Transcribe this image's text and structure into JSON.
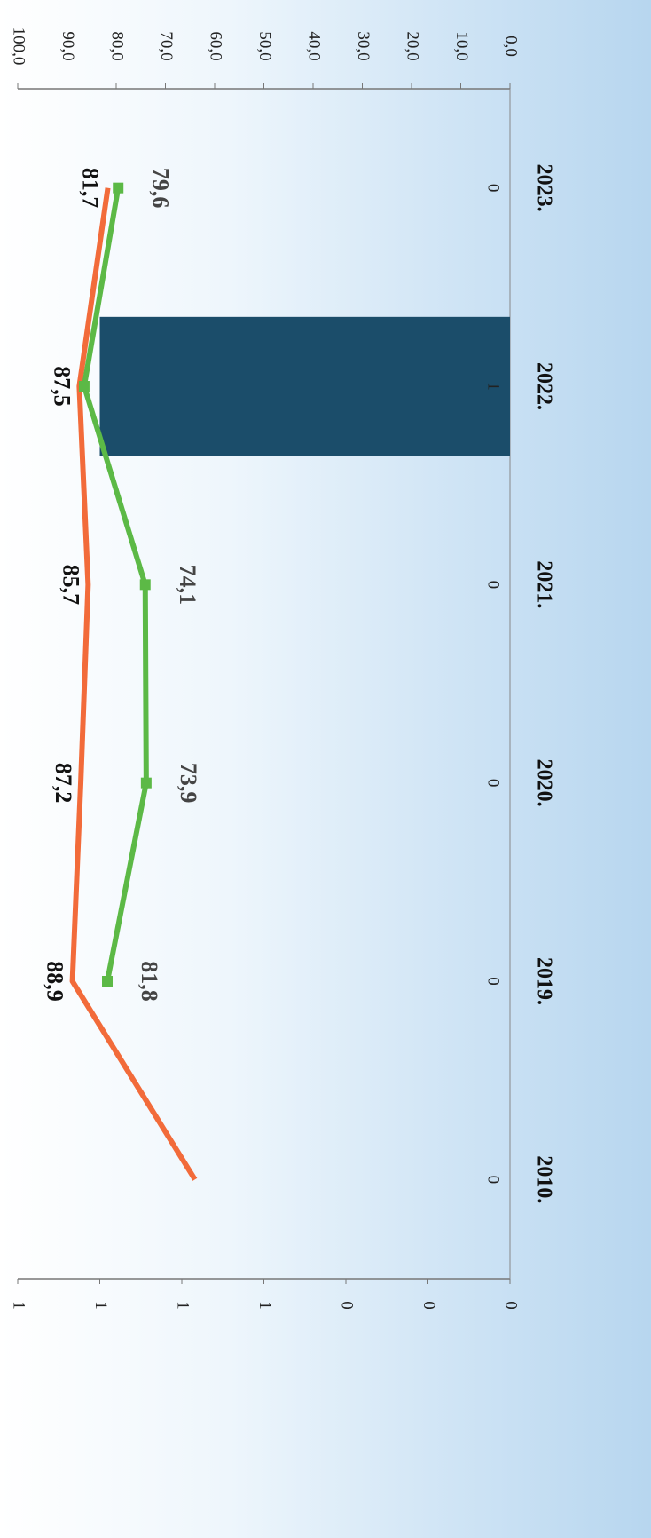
{
  "chart_data": {
    "type": "bar_line",
    "categories": [
      "2010.",
      "2019.",
      "2020.",
      "2021.",
      "2022.",
      "2023."
    ],
    "series": [
      {
        "type": "bar",
        "axis": "y2",
        "color": "#1b4d6a",
        "values": [
          0,
          0,
          0,
          0,
          1,
          0
        ],
        "value_labels": [
          "0",
          "0",
          "0",
          "0",
          "1",
          "0"
        ]
      },
      {
        "type": "line",
        "color": "#f26b3a",
        "values": [
          64,
          88.9,
          87.2,
          85.7,
          87.5,
          81.7
        ],
        "value_labels": [
          null,
          "88,9",
          "87,2",
          "85,7",
          "87,5",
          "81,7"
        ]
      },
      {
        "type": "line",
        "color": "#5cb946",
        "values": [
          null,
          81.8,
          73.9,
          74.1,
          86.5,
          79.6
        ],
        "value_labels": [
          null,
          "81,8",
          "73,9",
          "74,1",
          null,
          "79,6"
        ]
      }
    ],
    "ylim": [
      0,
      100
    ],
    "yticks": [
      {
        "value": 0,
        "label": "0,0"
      },
      {
        "value": 10,
        "label": "10,0"
      },
      {
        "value": 20,
        "label": "20,0"
      },
      {
        "value": 30,
        "label": "30,0"
      },
      {
        "value": 40,
        "label": "40,0"
      },
      {
        "value": 50,
        "label": "50,0"
      },
      {
        "value": 60,
        "label": "60,0"
      },
      {
        "value": 70,
        "label": "70,0"
      },
      {
        "value": 80,
        "label": "80,0"
      },
      {
        "value": 90,
        "label": "90,0"
      },
      {
        "value": 100,
        "label": "100,0"
      }
    ],
    "y2lim": [
      0,
      1.2
    ],
    "y2ticks": [
      {
        "value": 0,
        "label": "0"
      },
      {
        "value": 0.2,
        "label": "0"
      },
      {
        "value": 0.4,
        "label": "0"
      },
      {
        "value": 0.6,
        "label": "1"
      },
      {
        "value": 0.8,
        "label": "1"
      },
      {
        "value": 1,
        "label": "1"
      },
      {
        "value": 1.2,
        "label": "1"
      }
    ]
  }
}
